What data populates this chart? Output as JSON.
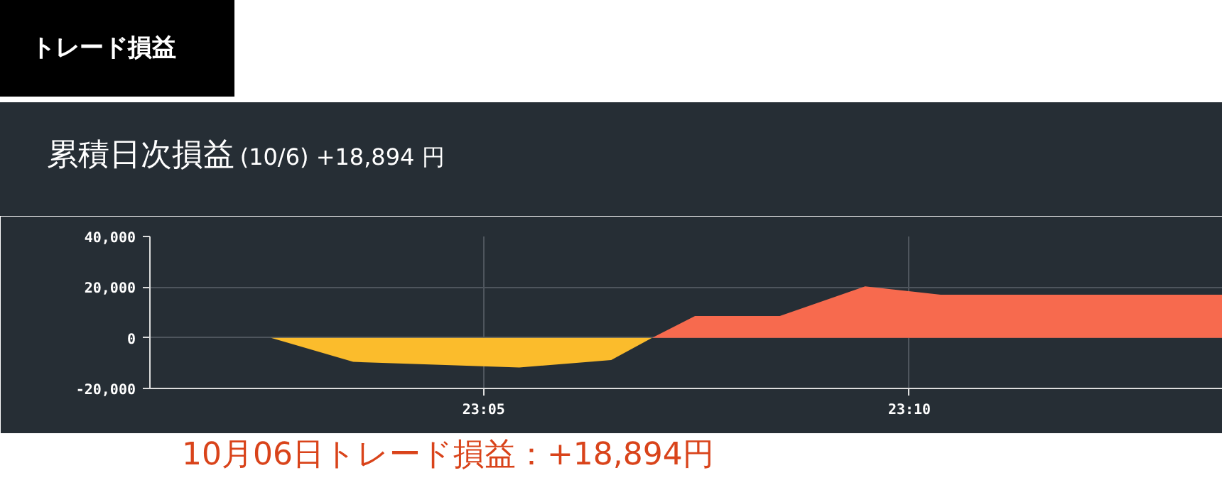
{
  "chart_data": {
    "type": "area",
    "title": "累積日次損益",
    "subtitle": "(10/6) +18,894 円",
    "annotations": [
      "トレード損益",
      "10月06日トレード損益：+18,894円"
    ],
    "series": [
      {
        "color": "#f76a4e",
        "x": [
          23.018,
          23.0417,
          23.1,
          23.1163,
          23.1247,
          23.1413,
          23.158,
          23.1728,
          23.228
        ],
        "values": [
          0,
          0,
          null,
          0,
          8600,
          8600,
          20300,
          17000,
          17000
        ]
      },
      {
        "color": "#fbbc2c",
        "x": [
          23.0417,
          23.0578,
          23.0903,
          23.1083,
          23.1163
        ],
        "values": [
          0,
          -9500,
          -11700,
          -8800,
          0
        ]
      }
    ],
    "xlim": [
      23.018,
      23.228
    ],
    "xticks": [
      {
        "value": 23.083333,
        "label": "23:05"
      },
      {
        "value": 23.166667,
        "label": "23:10"
      }
    ],
    "ylim": [
      -20000,
      40000
    ],
    "yticks": [
      {
        "value": -20000,
        "label": "-20,000"
      },
      {
        "value": 0,
        "label": "0"
      },
      {
        "value": 20000,
        "label": "20,000"
      },
      {
        "value": 40000,
        "label": "40,000"
      }
    ],
    "grid": true
  }
}
